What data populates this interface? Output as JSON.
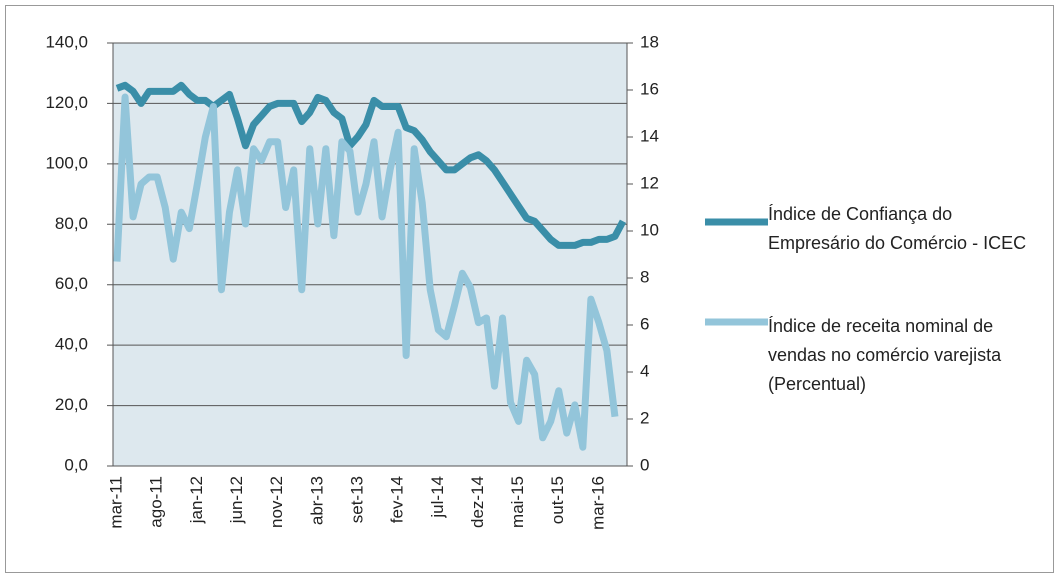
{
  "chart_data": {
    "type": "line",
    "categories": [
      "mar-11",
      null,
      null,
      null,
      null,
      "ago-11",
      null,
      null,
      null,
      null,
      "jan-12",
      null,
      null,
      null,
      null,
      "jun-12",
      null,
      null,
      null,
      null,
      "nov-12",
      null,
      null,
      null,
      null,
      "abr-13",
      null,
      null,
      null,
      null,
      "set-13",
      null,
      null,
      null,
      null,
      "fev-14",
      null,
      null,
      null,
      null,
      "jul-14",
      null,
      null,
      null,
      null,
      "dez-14",
      null,
      null,
      null,
      null,
      "mai-15",
      null,
      null,
      null,
      null,
      "out-15",
      null,
      null,
      null,
      null,
      "mar-16",
      null,
      null,
      null
    ],
    "series": [
      {
        "name": "Índice de Confiança do Empresário do Comércio - ICEC",
        "color": "#3a8ea8",
        "values": [
          125,
          126,
          124,
          120,
          124,
          124,
          124,
          124,
          126,
          123,
          121,
          121,
          119,
          121,
          123,
          115,
          106,
          113,
          116,
          119,
          120,
          120,
          120,
          114,
          117,
          122,
          121,
          117,
          115,
          106,
          109,
          113,
          121,
          119,
          119,
          119,
          112,
          111,
          108,
          104,
          101,
          98,
          98,
          100,
          102,
          103,
          101,
          98,
          94,
          90,
          86,
          82,
          81,
          78,
          75,
          73,
          73,
          73,
          74,
          74,
          75,
          75,
          76,
          81
        ]
      },
      {
        "name": "Índice de receita nominal de vendas no comércio varejista (Percentual)",
        "color": "#93c5da",
        "axis": "y2",
        "values": [
          8.7,
          15.7,
          10.6,
          12,
          12.3,
          12.3,
          11,
          8.8,
          10.8,
          10.1,
          12,
          14,
          15.3,
          7.5,
          10.8,
          12.6,
          10.3,
          13.5,
          13,
          13.8,
          13.8,
          11,
          12.6,
          7.5,
          13.5,
          10.3,
          13.5,
          9.8,
          13.8,
          13.4,
          10.8,
          12,
          13.8,
          10.6,
          12.6,
          14.2,
          4.7,
          13.5,
          11.2,
          7.5,
          5.8,
          5.5,
          6.8,
          8.2,
          7.6,
          6.1,
          6.3,
          3.4,
          6.3,
          2.7,
          1.9,
          4.5,
          3.9,
          1.2,
          1.9,
          3.2,
          1.4,
          2.6,
          0.8,
          7.1,
          6.1,
          4.9,
          2.1,
          null
        ]
      }
    ],
    "ylim": [
      0,
      140
    ],
    "yticks": [
      {
        "value": 0,
        "label": "0,0"
      },
      {
        "value": 20,
        "label": "20,0"
      },
      {
        "value": 40,
        "label": "40,0"
      },
      {
        "value": 60,
        "label": "60,0"
      },
      {
        "value": 80,
        "label": "80,0"
      },
      {
        "value": 100,
        "label": "100,0"
      },
      {
        "value": 120,
        "label": "120,0"
      },
      {
        "value": 140,
        "label": "140,0"
      }
    ],
    "y2lim": [
      0,
      18
    ],
    "y2ticks": [
      0,
      2,
      4,
      6,
      8,
      10,
      12,
      14,
      16,
      18
    ],
    "grid": true,
    "legend": "right"
  }
}
